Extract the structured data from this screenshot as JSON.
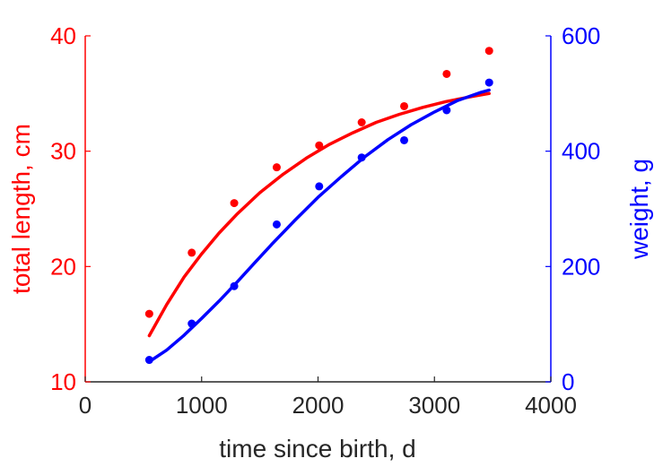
{
  "chart_data": {
    "type": "scatter",
    "title": "",
    "xlabel": "time since birth, d",
    "ylabel_left": "total length, cm",
    "ylabel_right": "weight, g",
    "xlim": [
      0,
      4000
    ],
    "ylim_left": [
      10,
      40
    ],
    "ylim_right": [
      0,
      600
    ],
    "x_ticks": [
      "0",
      "1000",
      "2000",
      "3000",
      "4000"
    ],
    "y_left_ticks": [
      "10",
      "20",
      "30",
      "40"
    ],
    "y_right_ticks": [
      "0",
      "200",
      "400",
      "600"
    ],
    "grid": false,
    "legend": "none",
    "colors": {
      "left": "#ff0000",
      "right": "#0000ff",
      "axis": "#262626"
    },
    "series": [
      {
        "axis": "left",
        "points": [
          [
            550,
            15.9
          ],
          [
            915,
            21.2
          ],
          [
            1280,
            25.5
          ],
          [
            1645,
            28.6
          ],
          [
            2010,
            30.5
          ],
          [
            2375,
            32.5
          ],
          [
            2740,
            33.9
          ],
          [
            3105,
            36.7
          ],
          [
            3470,
            38.7
          ]
        ],
        "fit": [
          [
            550,
            14.0
          ],
          [
            700,
            16.7
          ],
          [
            850,
            19.1
          ],
          [
            1000,
            21.1
          ],
          [
            1150,
            22.9
          ],
          [
            1300,
            24.5
          ],
          [
            1500,
            26.4
          ],
          [
            1700,
            28.0
          ],
          [
            1900,
            29.4
          ],
          [
            2100,
            30.6
          ],
          [
            2300,
            31.6
          ],
          [
            2500,
            32.5
          ],
          [
            2700,
            33.2
          ],
          [
            2900,
            33.8
          ],
          [
            3100,
            34.3
          ],
          [
            3300,
            34.7
          ],
          [
            3470,
            35.0
          ]
        ]
      },
      {
        "axis": "right",
        "points": [
          [
            550,
            38
          ],
          [
            915,
            101
          ],
          [
            1280,
            166
          ],
          [
            1645,
            273
          ],
          [
            2010,
            339
          ],
          [
            2375,
            389
          ],
          [
            2740,
            419
          ],
          [
            3105,
            471
          ],
          [
            3470,
            519
          ]
        ],
        "fit": [
          [
            550,
            35
          ],
          [
            700,
            55
          ],
          [
            850,
            81
          ],
          [
            1000,
            110
          ],
          [
            1150,
            140
          ],
          [
            1300,
            172
          ],
          [
            1450,
            205
          ],
          [
            1600,
            238
          ],
          [
            1800,
            280
          ],
          [
            2000,
            320
          ],
          [
            2200,
            356
          ],
          [
            2400,
            390
          ],
          [
            2600,
            420
          ],
          [
            2800,
            446
          ],
          [
            3000,
            468
          ],
          [
            3200,
            488
          ],
          [
            3400,
            502
          ],
          [
            3470,
            506
          ]
        ]
      }
    ]
  }
}
